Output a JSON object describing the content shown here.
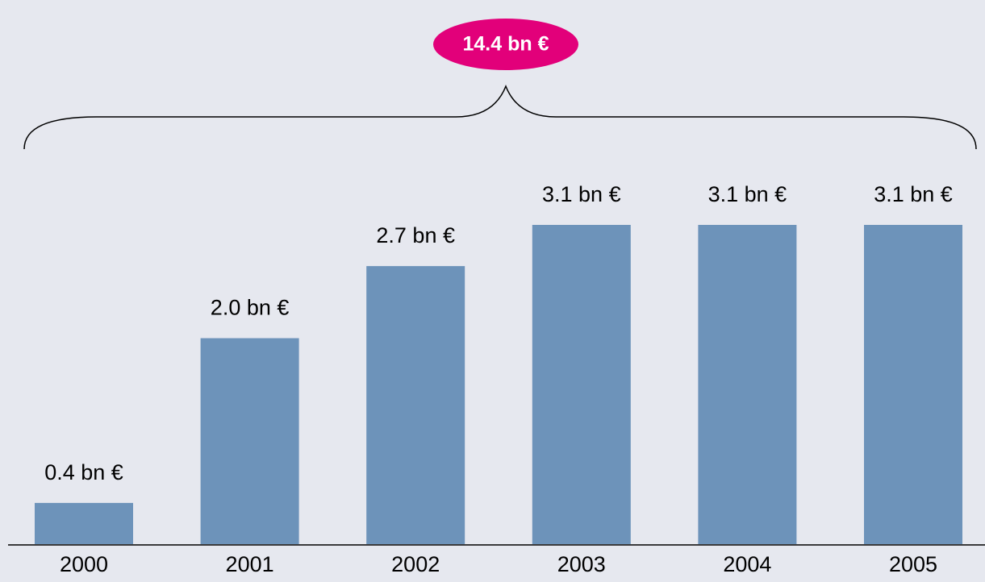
{
  "chart_data": {
    "type": "bar",
    "categories": [
      "2000",
      "2001",
      "2002",
      "2003",
      "2004",
      "2005"
    ],
    "values": [
      0.4,
      2.0,
      2.7,
      3.1,
      3.1,
      3.1
    ],
    "value_labels": [
      "0.4 bn €",
      "2.0 bn €",
      "2.7 bn €",
      "3.1 bn €",
      "3.1 bn €",
      "3.1 bn €"
    ],
    "color": "#6d93ba",
    "annotation": "14.4 bn €",
    "annotation_color": "#e2007a"
  }
}
